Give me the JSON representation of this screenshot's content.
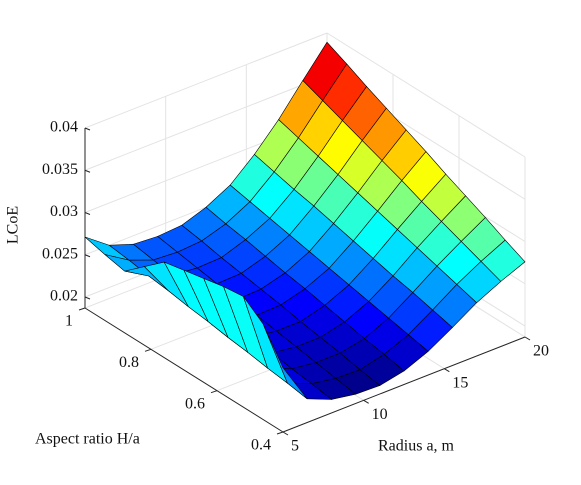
{
  "chart_data": {
    "type": "surface",
    "xlabel": "Radius a, m",
    "ylabel": "Aspect ratio H/a",
    "zlabel": "LCoE",
    "x": [
      5,
      6.5,
      8,
      9.5,
      11,
      12.5,
      14,
      15.5,
      17,
      18.5,
      20
    ],
    "y": [
      0.4,
      0.46,
      0.52,
      0.58,
      0.64,
      0.7,
      0.76,
      0.82,
      0.88,
      0.94,
      1.0
    ],
    "z": [
      [
        0.0263,
        0.0215,
        0.0203,
        0.0198,
        0.0197,
        0.0203,
        0.0215,
        0.0232,
        0.025,
        0.0264,
        0.0276
      ],
      [
        0.03,
        0.0219,
        0.0207,
        0.0202,
        0.0201,
        0.0208,
        0.022,
        0.0238,
        0.0257,
        0.0273,
        0.0287
      ],
      [
        0.0318,
        0.0222,
        0.021,
        0.0206,
        0.0206,
        0.0212,
        0.0225,
        0.0244,
        0.0264,
        0.0282,
        0.0299
      ],
      [
        0.0315,
        0.0226,
        0.0214,
        0.021,
        0.021,
        0.0217,
        0.023,
        0.0249,
        0.0271,
        0.0291,
        0.031
      ],
      [
        0.031,
        0.0229,
        0.0218,
        0.0214,
        0.0214,
        0.0222,
        0.0235,
        0.0255,
        0.0278,
        0.03,
        0.0321
      ],
      [
        0.0305,
        0.0233,
        0.0222,
        0.0218,
        0.0219,
        0.0227,
        0.024,
        0.0261,
        0.0285,
        0.031,
        0.0333
      ],
      [
        0.03,
        0.0236,
        0.0225,
        0.0222,
        0.0223,
        0.0231,
        0.0245,
        0.0267,
        0.0292,
        0.0319,
        0.0344
      ],
      [
        0.028,
        0.024,
        0.0229,
        0.0226,
        0.0227,
        0.0236,
        0.025,
        0.0273,
        0.0299,
        0.0328,
        0.0355
      ],
      [
        0.026,
        0.0243,
        0.0233,
        0.023,
        0.0231,
        0.0241,
        0.0255,
        0.0278,
        0.0306,
        0.0337,
        0.0366
      ],
      [
        0.0265,
        0.0247,
        0.0236,
        0.0234,
        0.0236,
        0.0245,
        0.026,
        0.0284,
        0.0313,
        0.0346,
        0.0378
      ],
      [
        0.0271,
        0.025,
        0.024,
        0.0238,
        0.024,
        0.025,
        0.0265,
        0.029,
        0.032,
        0.0355,
        0.0389
      ]
    ],
    "xlim": [
      5,
      20
    ],
    "xticks": [
      5,
      10,
      15,
      20
    ],
    "ylim": [
      0.4,
      1
    ],
    "yticks": [
      0.4,
      0.6,
      0.8,
      1
    ],
    "zlim": [
      0.0187,
      0.04
    ],
    "zticks": [
      0.02,
      0.025,
      0.03,
      0.035,
      0.04
    ],
    "colormap": "jet",
    "grid": true
  }
}
